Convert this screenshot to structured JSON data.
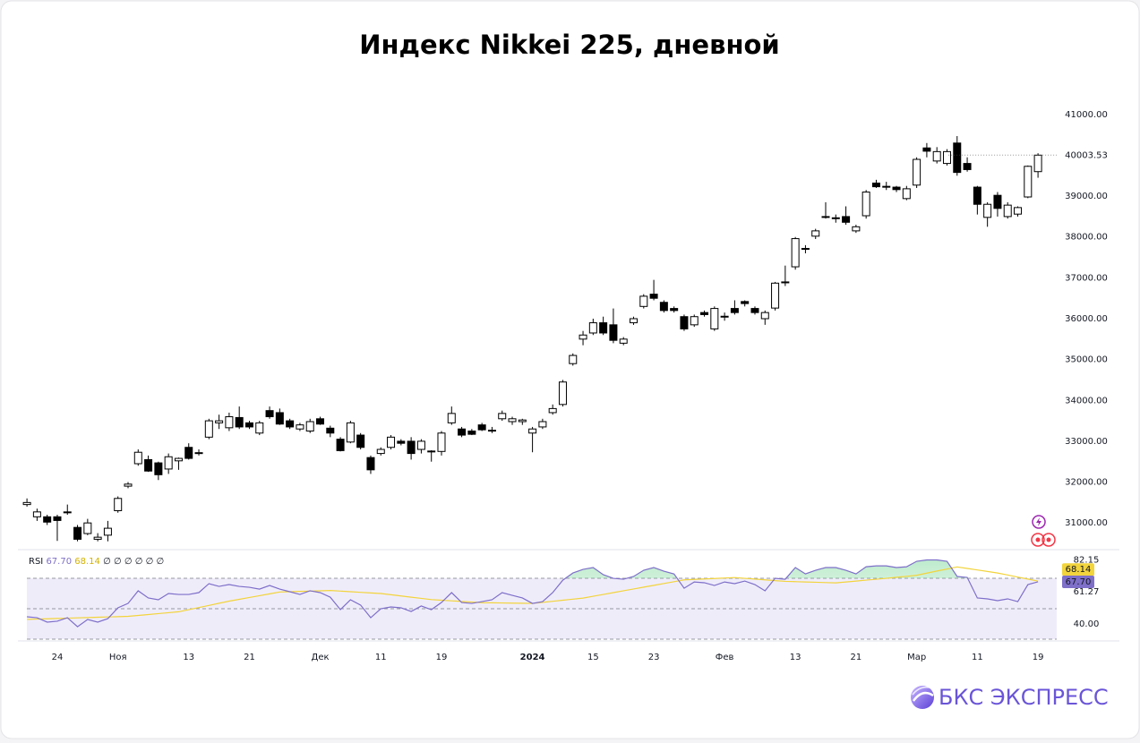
{
  "title": "Индекс Nikkei 225, дневной",
  "brand": "БКС ЭКСПРЕСС",
  "chart_data": [
    {
      "type": "candlestick",
      "categories": [
        null,
        null,
        null,
        "24",
        null,
        null,
        null,
        null,
        null,
        "Ноя",
        null,
        null,
        null,
        null,
        null,
        null,
        "13",
        null,
        null,
        null,
        null,
        null,
        "21",
        null,
        null,
        null,
        null,
        null,
        null,
        "Дек",
        null,
        null,
        null,
        null,
        null,
        "11",
        null,
        null,
        null,
        null,
        null,
        "19",
        null,
        null,
        null,
        null,
        null,
        null,
        null,
        null,
        "2024",
        null,
        null,
        null,
        null,
        null,
        "15",
        null,
        null,
        null,
        null,
        null,
        "23",
        null,
        null,
        null,
        null,
        null,
        null,
        "Фев",
        null,
        null,
        null,
        null,
        null,
        null,
        "13",
        null,
        null,
        null,
        null,
        null,
        "21",
        null,
        null,
        null,
        null,
        null,
        "Мар",
        null,
        null,
        null,
        null,
        null,
        "11",
        null,
        null,
        null,
        null,
        null,
        "19"
      ],
      "open": [
        31450,
        31150,
        31150,
        31150,
        31250,
        30890,
        30740,
        30600,
        30700,
        31300,
        31900,
        32450,
        32550,
        32470,
        32320,
        32520,
        32850,
        32700,
        33100,
        33450,
        33330,
        33580,
        33450,
        33200,
        33750,
        33700,
        33500,
        33300,
        33250,
        33550,
        33320,
        33050,
        32980,
        33150,
        32600,
        32700,
        32850,
        33000,
        33000,
        32800,
        32750,
        32750,
        33450,
        33300,
        33250,
        33400,
        33250,
        33550,
        33480,
        33480,
        33200,
        33350,
        33700,
        33900,
        34900,
        35500,
        35650,
        35900,
        35850,
        35400,
        35900,
        36300,
        36600,
        36400,
        36250,
        36050,
        35850,
        36150,
        35750,
        36040,
        36250,
        36420,
        36250,
        36000,
        36260,
        36880,
        37270,
        37700,
        38020,
        38500,
        38450,
        38500,
        38150,
        38520,
        39320,
        39220,
        39220,
        38940,
        39270,
        40180,
        39860,
        39800,
        40300,
        39800,
        39220,
        38480,
        39020,
        38500,
        38560,
        38980,
        39600
      ],
      "high": [
        31600,
        31350,
        31200,
        31200,
        31450,
        30950,
        31100,
        30750,
        31050,
        31650,
        32000,
        32800,
        32650,
        32500,
        32700,
        32600,
        32950,
        32800,
        33550,
        33650,
        33700,
        33850,
        33500,
        33500,
        33850,
        33800,
        33550,
        33450,
        33550,
        33600,
        33380,
        33100,
        33500,
        33200,
        32650,
        32850,
        33150,
        33050,
        33100,
        33050,
        32780,
        33250,
        33850,
        33350,
        33300,
        33450,
        33350,
        33750,
        33600,
        33550,
        33350,
        33550,
        33900,
        34500,
        35150,
        35700,
        36000,
        36050,
        36250,
        35550,
        36050,
        36600,
        36950,
        36450,
        36300,
        36100,
        36100,
        36200,
        36300,
        36150,
        36450,
        36450,
        36300,
        36200,
        36900,
        37300,
        38000,
        37800,
        38200,
        38850,
        38550,
        38750,
        38300,
        39150,
        39400,
        39350,
        39250,
        39250,
        39950,
        40300,
        40200,
        40150,
        40470,
        39950,
        39250,
        38850,
        39100,
        38850,
        38750,
        39750,
        40050
      ],
      "low": [
        31400,
        31050,
        30950,
        30560,
        31200,
        30550,
        30700,
        30550,
        30550,
        31250,
        31850,
        32400,
        32250,
        32050,
        32200,
        32300,
        32550,
        32650,
        33050,
        33300,
        33250,
        33300,
        33300,
        33150,
        33550,
        33400,
        33300,
        33250,
        33200,
        33400,
        33100,
        32750,
        32950,
        32800,
        32200,
        32650,
        32800,
        32900,
        32550,
        32700,
        32500,
        32650,
        33400,
        33100,
        33150,
        33250,
        33200,
        33500,
        33400,
        33400,
        32730,
        33300,
        33650,
        33850,
        34850,
        35350,
        35600,
        35600,
        35400,
        35350,
        35850,
        36250,
        36450,
        36150,
        36150,
        35700,
        35800,
        36050,
        35700,
        35950,
        36100,
        36300,
        36100,
        35850,
        36200,
        36800,
        37200,
        37600,
        37950,
        38450,
        38350,
        38300,
        38100,
        38450,
        39200,
        39150,
        39100,
        38900,
        39200,
        39950,
        39800,
        39750,
        39500,
        39600,
        38550,
        38250,
        38500,
        38450,
        38500,
        38950,
        39450
      ],
      "close": [
        31500,
        31270,
        31020,
        31060,
        31270,
        30600,
        31000,
        30650,
        30870,
        31600,
        31950,
        32730,
        32270,
        32180,
        32620,
        32580,
        32580,
        32720,
        33500,
        33500,
        33600,
        33350,
        33350,
        33450,
        33600,
        33420,
        33350,
        33400,
        33480,
        33420,
        33200,
        32770,
        33450,
        32850,
        32300,
        32800,
        33100,
        32950,
        32700,
        33000,
        32760,
        33200,
        33680,
        33150,
        33170,
        33280,
        33270,
        33680,
        33550,
        33520,
        33300,
        33480,
        33800,
        34450,
        35100,
        35600,
        35900,
        35650,
        35470,
        35500,
        36000,
        36550,
        36500,
        36200,
        36200,
        35750,
        36050,
        36100,
        36250,
        36060,
        36150,
        36370,
        36150,
        36150,
        36870,
        36900,
        37960,
        37720,
        38150,
        38480,
        38470,
        38360,
        38250,
        39100,
        39230,
        39240,
        39160,
        39180,
        39900,
        40100,
        40090,
        40090,
        39580,
        39650,
        38800,
        38800,
        38700,
        38780,
        38720,
        39730,
        40003.53
      ],
      "up_color": "#ffffff",
      "down_color": "#000000",
      "ylim": [
        30390,
        41610
      ],
      "yticks": [
        {
          "value": 31000,
          "label": "31000.00"
        },
        {
          "value": 32000,
          "label": "32000.00"
        },
        {
          "value": 33000,
          "label": "33000.00"
        },
        {
          "value": 34000,
          "label": "34000.00"
        },
        {
          "value": 35000,
          "label": "35000.00"
        },
        {
          "value": 36000,
          "label": "36000.00"
        },
        {
          "value": 37000,
          "label": "37000.00"
        },
        {
          "value": 38000,
          "label": "38000.00"
        },
        {
          "value": 39000,
          "label": "39000.00"
        },
        {
          "value": 41000,
          "label": "41000.00"
        }
      ]
    },
    {
      "type": "line",
      "series": [
        {
          "name": "RSI",
          "color": "#7e6fc9",
          "last_label": "67.70",
          "values": [
            44.7,
            44.1,
            41.2,
            41.8,
            44.1,
            38.2,
            42.9,
            41.2,
            43.5,
            50.6,
            53.5,
            61.8,
            57.1,
            55.9,
            60.0,
            59.4,
            59.4,
            60.6,
            66.5,
            64.7,
            65.9,
            64.7,
            64.1,
            62.9,
            65.3,
            62.9,
            61.2,
            59.4,
            61.8,
            60.6,
            57.6,
            49.4,
            55.9,
            52.4,
            44.1,
            50.0,
            51.2,
            50.6,
            48.2,
            51.8,
            49.4,
            54.1,
            60.6,
            54.1,
            53.5,
            54.7,
            55.9,
            60.6,
            58.8,
            57.1,
            53.5,
            54.7,
            60.6,
            68.8,
            73.5,
            75.9,
            77.1,
            72.4,
            70.0,
            69.4,
            71.2,
            75.3,
            77.1,
            74.7,
            72.9,
            63.5,
            67.6,
            67.1,
            65.3,
            67.6,
            66.5,
            68.2,
            65.9,
            61.8,
            70.0,
            69.4,
            77.1,
            72.9,
            75.3,
            77.1,
            77.1,
            75.3,
            72.9,
            77.6,
            78.2,
            78.2,
            77.1,
            77.6,
            81.2,
            82.1,
            82.1,
            81.2,
            71.2,
            70.6,
            57.1,
            56.5,
            55.3,
            56.5,
            54.7,
            65.9,
            67.7
          ]
        },
        {
          "color": "#f2d43c",
          "values": [
            43,
            43.2,
            43.4,
            43.6,
            43.8,
            44,
            44.2,
            44.4,
            44.6,
            44.8,
            45,
            45.6,
            46.2,
            46.8,
            47.4,
            48,
            49.4,
            50.8,
            52.2,
            53.6,
            55,
            56.2,
            57.4,
            58.6,
            59.8,
            61,
            61.2,
            61.4,
            61.6,
            61.8,
            62,
            61.6,
            61.2,
            60.8,
            60.4,
            60,
            59.2,
            58.4,
            57.6,
            56.8,
            56,
            55.6,
            55.2,
            54.8,
            54.4,
            54,
            53.9,
            53.8,
            53.7,
            53.6,
            53.5,
            54.2,
            54.9,
            55.6,
            56.3,
            57,
            58.2,
            59.4,
            60.6,
            61.8,
            63,
            64.2,
            65.4,
            66.6,
            67.8,
            69,
            69.3,
            69.6,
            69.9,
            70.2,
            70.5,
            70,
            69.5,
            69,
            68.5,
            68,
            67.8,
            67.6,
            67.4,
            67.2,
            67,
            67.6,
            68.2,
            68.8,
            69.4,
            70,
            70.7,
            71.3,
            72,
            73.4,
            74.8,
            76.1,
            77.5,
            76.5,
            75.5,
            74.5,
            73.5,
            72.2,
            70.8,
            69.5,
            68.14
          ]
        }
      ],
      "legend_extra": "∅ ∅ ∅ ∅ ∅ ∅",
      "levels": [
        70,
        50,
        30
      ],
      "band_color": "#efecfa",
      "ylim": [
        29.4,
        87.1
      ],
      "yticks": [
        82.15,
        61.27,
        {
          "value": 40,
          "label": "40.00"
        }
      ]
    }
  ]
}
